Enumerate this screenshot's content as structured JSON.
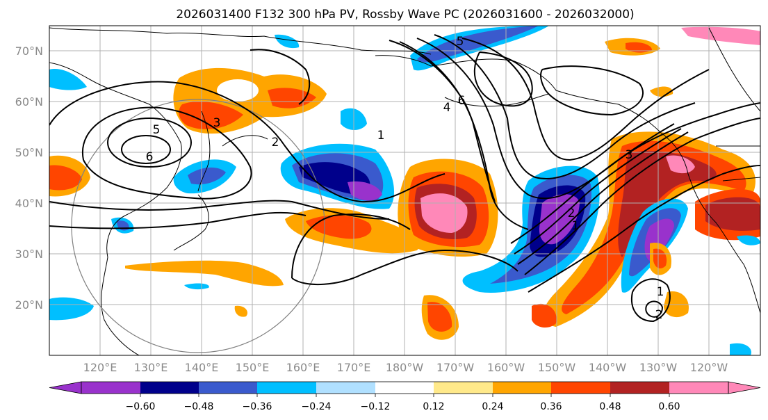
{
  "title": "2026031400 F132 300 hPa PV, Rossby Wave PC (2026031600 - 2026032000)",
  "lat_labels": [
    "70°N",
    "60°N",
    "50°N",
    "40°N",
    "30°N",
    "20°N"
  ],
  "lon_labels": [
    "120°E",
    "130°E",
    "140°E",
    "150°E",
    "160°E",
    "170°E",
    "180°W",
    "170°W",
    "160°W",
    "150°W",
    "140°W",
    "130°W",
    "120°W"
  ],
  "colorbar": {
    "ticks": [
      "−0.60",
      "−0.48",
      "−0.36",
      "−0.24",
      "−0.12",
      "0.12",
      "0.24",
      "0.36",
      "0.48",
      "0.60"
    ],
    "colors": [
      "#9932cc",
      "#00008b",
      "#3a5acd",
      "#00bfff",
      "#b0e0ff",
      "#ffffff",
      "#ffe98a",
      "#ffa500",
      "#ff4500",
      "#b22222",
      "#ff88b8"
    ]
  },
  "contour_labels": [
    "5",
    "6",
    "5",
    "6",
    "2",
    "3",
    "4",
    "1",
    "2",
    "1",
    "3",
    "1",
    "2"
  ],
  "colors": {
    "grid": "#b0b0b0",
    "contour": "#000000",
    "coast": "#000000",
    "great_circle": "#808080"
  }
}
